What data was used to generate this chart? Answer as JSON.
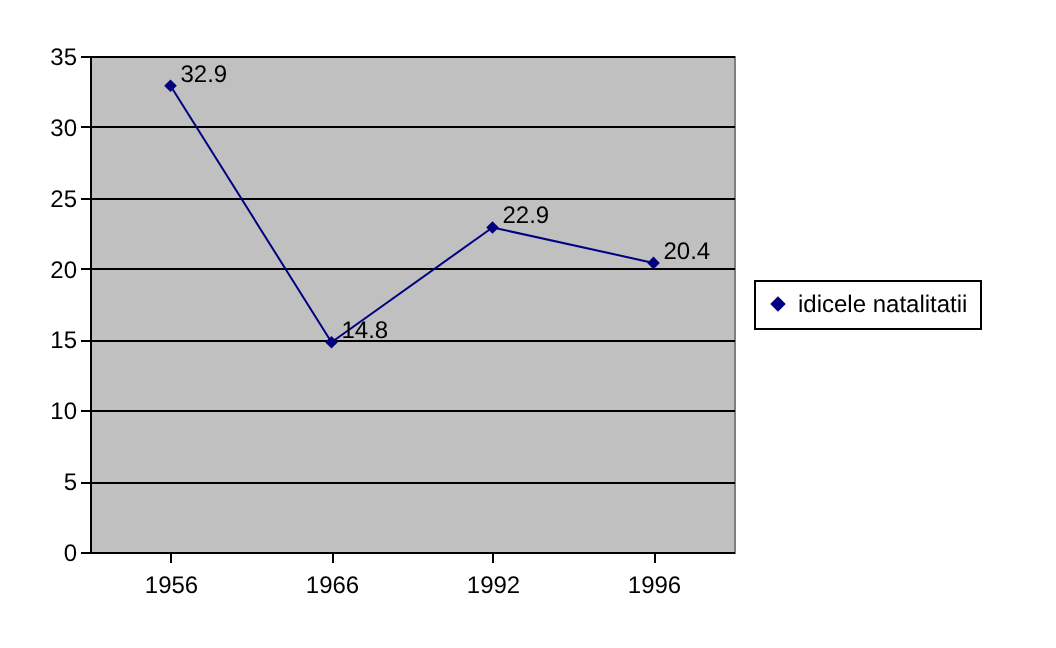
{
  "chart_data": {
    "type": "line",
    "categories": [
      "1956",
      "1966",
      "1992",
      "1996"
    ],
    "series": [
      {
        "name": "idicele natalitatii",
        "color": "#000080",
        "values": [
          32.9,
          14.8,
          22.9,
          20.4
        ]
      }
    ],
    "ylim": [
      0,
      35
    ],
    "yticks": [
      0,
      5,
      10,
      15,
      20,
      25,
      30,
      35
    ],
    "grid": "y",
    "legend": "right",
    "marker": "diamond",
    "data_labels": true
  }
}
